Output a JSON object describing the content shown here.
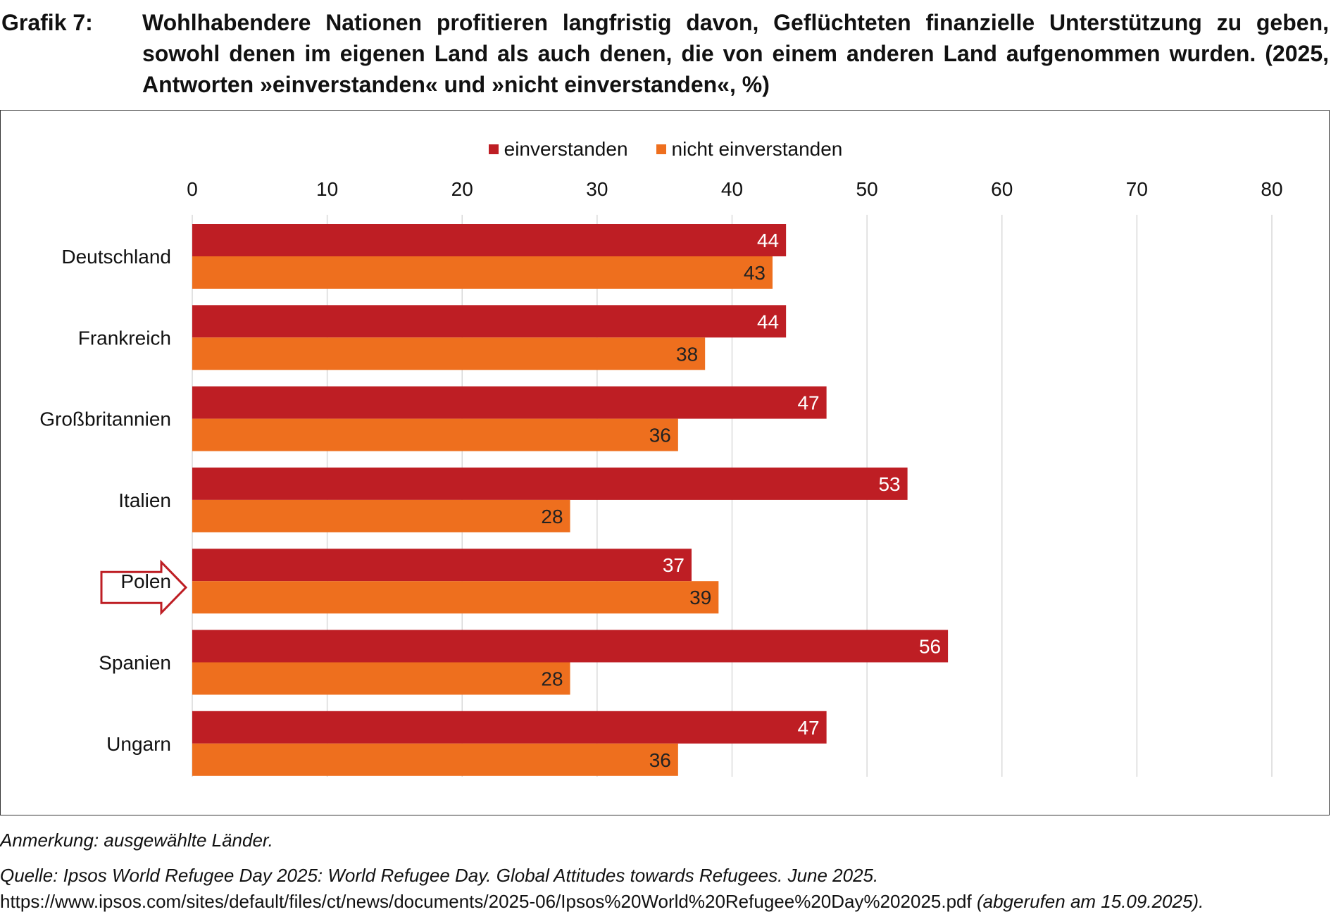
{
  "header": {
    "figure_label": "Grafik 7:",
    "title": "Wohlhabendere Nationen profitieren langfristig davon, Geflüchteten finanzielle Unterstützung zu geben, sowohl denen im eigenen Land als auch denen, die von einem anderen Land aufgenommen wurden. (2025, Antworten »einverstanden« und »nicht einverstanden«, %)"
  },
  "colors": {
    "agree": "#BE1E24",
    "disagree": "#EE6F1E",
    "grid": "#D9D9D9",
    "arrow": "#BE1E24"
  },
  "chart_data": {
    "type": "bar",
    "orientation": "horizontal",
    "categories": [
      "Deutschland",
      "Frankreich",
      "Großbritannien",
      "Italien",
      "Polen",
      "Spanien",
      "Ungarn"
    ],
    "series": [
      {
        "name": "einverstanden",
        "values": [
          44,
          44,
          47,
          53,
          37,
          56,
          47
        ]
      },
      {
        "name": "nicht einverstanden",
        "values": [
          43,
          38,
          36,
          28,
          39,
          28,
          36
        ]
      }
    ],
    "xlim": [
      0,
      80
    ],
    "xticks": [
      "0",
      "10",
      "20",
      "30",
      "40",
      "50",
      "60",
      "70",
      "80"
    ],
    "legend_position": "top-center",
    "highlighted_category": "Polen",
    "grid": true
  },
  "footer": {
    "note": "Anmerkung: ausgewählte Länder.",
    "source_a": "Quelle: Ipsos World Refugee Day 2025: World Refugee Day. Global Attitudes towards Refugees. June 2025.",
    "source_url": " https://www.ipsos.com/sites/default/files/ct/news/documents/2025-06/Ipsos%20World%20Refugee%20Day%202025.pdf",
    "source_b": " (abgerufen am 15.09.2025)."
  }
}
